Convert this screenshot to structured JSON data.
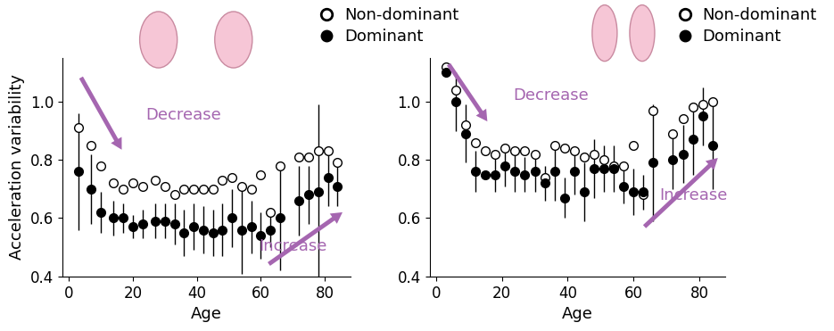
{
  "chart_data": [
    {
      "type": "scatter",
      "xlabel": "Age",
      "ylabel": "Acceleration variability",
      "xlim": [
        -2,
        88
      ],
      "xticks": [
        0,
        20,
        40,
        60,
        80
      ],
      "ylim": [
        0.4,
        1.15
      ],
      "yticks": [
        0.4,
        0.6,
        0.8,
        1.0
      ],
      "legend": "upper right",
      "annotations": [
        "Decrease",
        "Increase"
      ],
      "series": [
        {
          "name": "Non-dominant",
          "color": "#000000",
          "marker": "open_circle",
          "x": [
            3,
            7,
            10,
            14,
            17,
            20,
            23,
            27,
            30,
            33,
            36,
            39,
            42,
            45,
            48,
            51,
            54,
            57,
            60,
            63,
            66,
            72,
            75,
            78,
            81,
            84
          ],
          "values": [
            0.91,
            0.85,
            0.78,
            0.72,
            0.7,
            0.72,
            0.71,
            0.73,
            0.71,
            0.68,
            0.7,
            0.7,
            0.7,
            0.7,
            0.73,
            0.74,
            0.71,
            0.7,
            0.75,
            0.62,
            0.78,
            0.81,
            0.81,
            0.83,
            0.83,
            0.79
          ]
        },
        {
          "name": "Dominant",
          "color": "#000000",
          "marker": "circle",
          "x": [
            3,
            7,
            10,
            14,
            17,
            20,
            23,
            27,
            30,
            33,
            36,
            39,
            42,
            45,
            48,
            51,
            54,
            57,
            60,
            63,
            66,
            72,
            75,
            78,
            81,
            84
          ],
          "values": [
            0.76,
            0.7,
            0.62,
            0.6,
            0.6,
            0.57,
            0.58,
            0.59,
            0.59,
            0.58,
            0.55,
            0.57,
            0.56,
            0.55,
            0.56,
            0.6,
            0.56,
            0.57,
            0.54,
            0.56,
            0.6,
            0.66,
            0.68,
            0.69,
            0.74,
            0.71
          ],
          "errors": [
            0.2,
            0.12,
            0.07,
            0.06,
            0.05,
            0.04,
            0.05,
            0.06,
            0.06,
            0.07,
            0.08,
            0.08,
            0.08,
            0.08,
            0.09,
            0.1,
            0.15,
            0.09,
            0.08,
            0.06,
            0.18,
            0.12,
            0.1,
            0.3,
            0.1,
            0.07
          ]
        }
      ]
    },
    {
      "type": "scatter",
      "xlabel": "Age",
      "xlim": [
        -2,
        88
      ],
      "xticks": [
        0,
        20,
        40,
        60,
        80
      ],
      "ylim": [
        0.4,
        1.15
      ],
      "yticks": [
        0.4,
        0.6,
        0.8,
        1.0
      ],
      "legend": "upper right",
      "annotations": [
        "Decrease",
        "Increase"
      ],
      "series": [
        {
          "name": "Non-dominant",
          "color": "#000000",
          "marker": "open_circle",
          "x": [
            3,
            6,
            9,
            12,
            15,
            18,
            21,
            24,
            27,
            30,
            33,
            36,
            39,
            42,
            45,
            48,
            51,
            54,
            57,
            60,
            63,
            66,
            72,
            75,
            78,
            81,
            84
          ],
          "values": [
            1.12,
            1.04,
            0.92,
            0.86,
            0.83,
            0.82,
            0.84,
            0.83,
            0.83,
            0.82,
            0.74,
            0.85,
            0.84,
            0.83,
            0.81,
            0.82,
            0.8,
            0.78,
            0.78,
            0.85,
            0.68,
            0.97,
            0.89,
            0.94,
            0.98,
            0.99,
            1.0
          ]
        },
        {
          "name": "Dominant",
          "color": "#000000",
          "marker": "circle",
          "x": [
            3,
            6,
            9,
            12,
            15,
            18,
            21,
            24,
            27,
            30,
            33,
            36,
            39,
            42,
            45,
            48,
            51,
            54,
            57,
            60,
            63,
            66,
            72,
            75,
            78,
            81,
            84
          ],
          "values": [
            1.1,
            1.0,
            0.89,
            0.76,
            0.75,
            0.75,
            0.78,
            0.76,
            0.75,
            0.76,
            0.72,
            0.76,
            0.67,
            0.76,
            0.69,
            0.77,
            0.77,
            0.77,
            0.71,
            0.69,
            0.69,
            0.79,
            0.8,
            0.82,
            0.87,
            0.95,
            0.85
          ],
          "errors": [
            null,
            0.1,
            0.1,
            0.07,
            null,
            0.06,
            0.07,
            0.07,
            0.06,
            0.07,
            0.06,
            0.1,
            0.07,
            0.08,
            0.1,
            0.1,
            0.08,
            0.08,
            0.06,
            0.08,
            0.06,
            0.2,
            0.1,
            0.1,
            0.12,
            0.1,
            0.15
          ]
        }
      ]
    }
  ]
}
